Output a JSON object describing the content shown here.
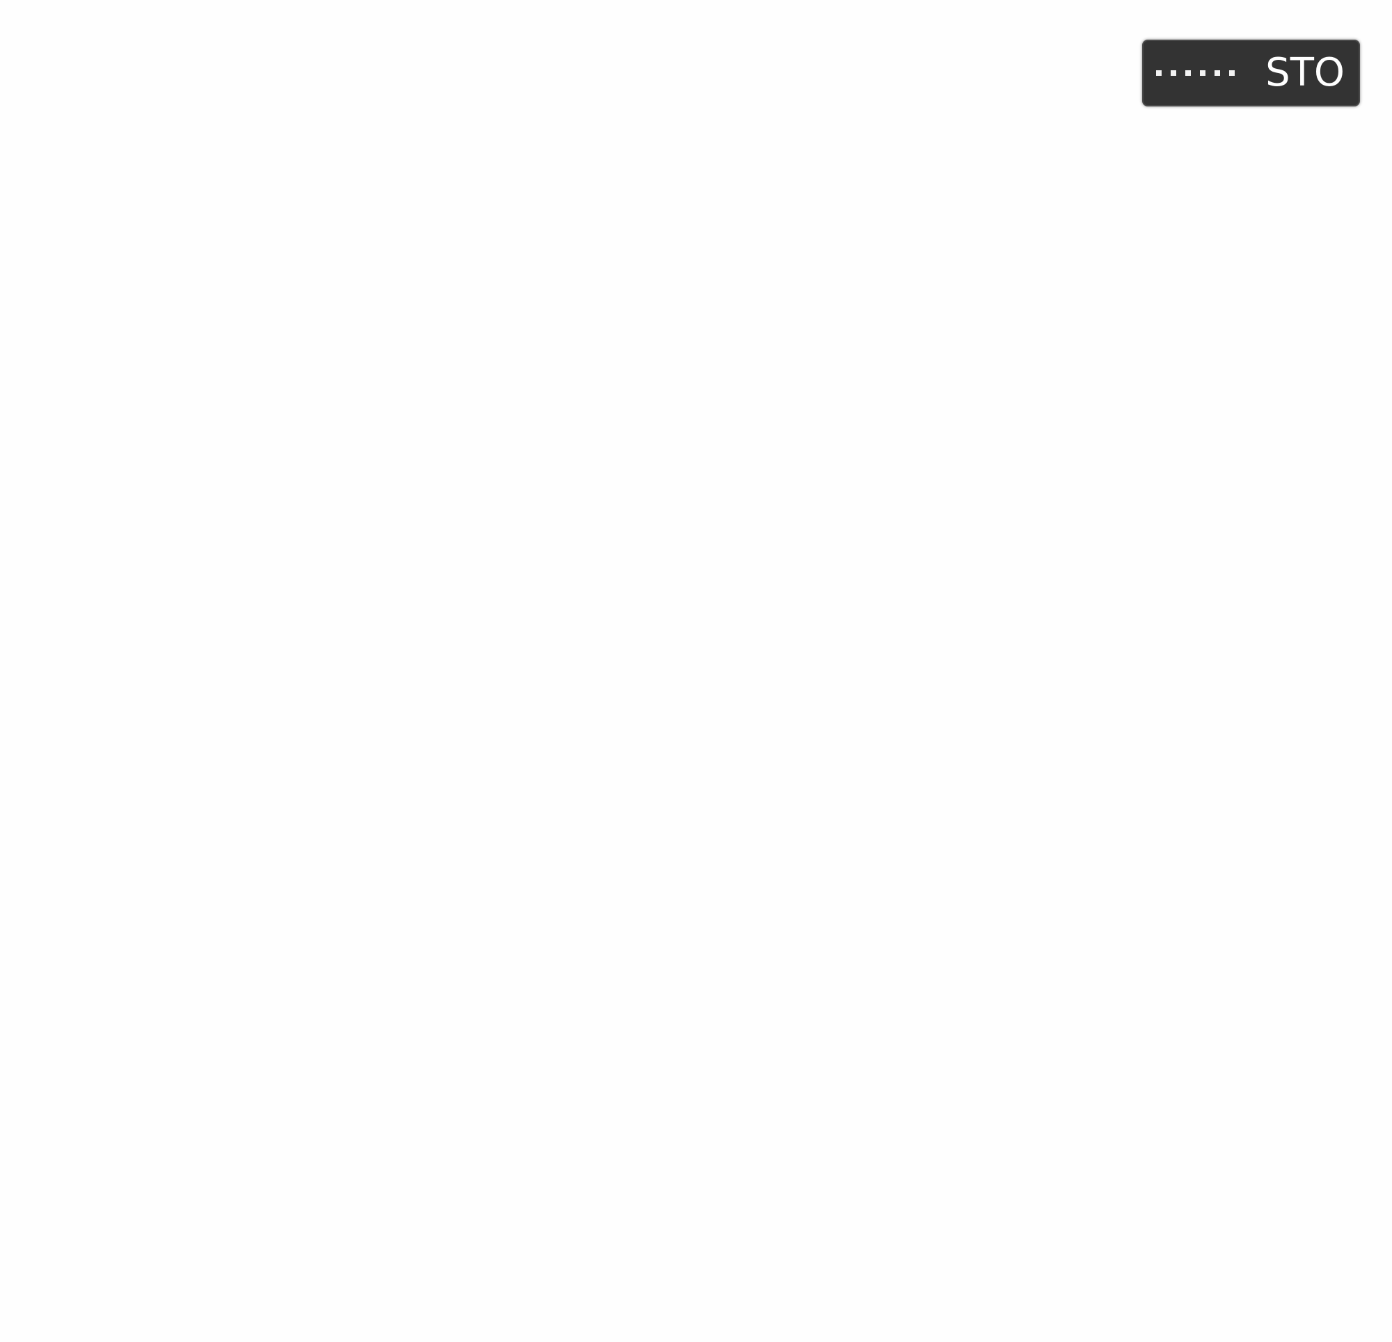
{
  "toolbar": {
    "stop_label": "STO",
    "drag_handle_icon": "grip-dots-icon"
  },
  "colors": {
    "page_background": "#fefefe",
    "toolbar_background": "#333333",
    "toolbar_text": "#ffffff"
  }
}
